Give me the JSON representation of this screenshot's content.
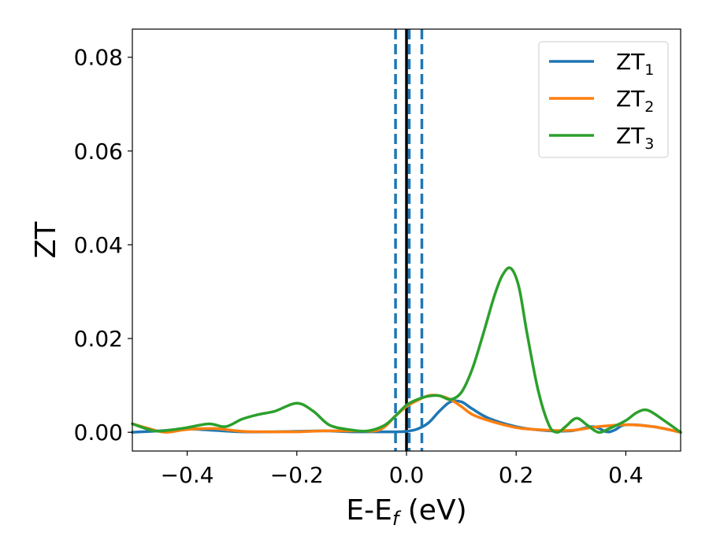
{
  "chart_data": {
    "type": "line",
    "xlabel": "E-E",
    "xlabel_sub": "f",
    "xlabel_unit": " (eV)",
    "ylabel": "ZT",
    "xlim": [
      -0.5,
      0.5
    ],
    "ylim": [
      -0.004,
      0.086
    ],
    "xticks": [
      -0.4,
      -0.2,
      0.0,
      0.2,
      0.4
    ],
    "xtick_labels": [
      "−0.4",
      "−0.2",
      "0.0",
      "0.2",
      "0.4"
    ],
    "yticks": [
      0.0,
      0.02,
      0.04,
      0.06,
      0.08
    ],
    "ytick_labels": [
      "0.00",
      "0.02",
      "0.04",
      "0.06",
      "0.08"
    ],
    "legend_position": "top-right",
    "colors": {
      "zt1": "#1f77b4",
      "zt2": "#ff7f0e",
      "zt3": "#2ca02c"
    },
    "vlines": [
      {
        "x": -0.02,
        "style": "dashed",
        "color": "#1f77b4"
      },
      {
        "x": 0.005,
        "style": "dashed",
        "color": "#1f77b4"
      },
      {
        "x": 0.028,
        "style": "dashed",
        "color": "#1f77b4"
      },
      {
        "x": 0.0,
        "style": "solid",
        "color": "#000000"
      }
    ],
    "series": [
      {
        "name": "ZT",
        "sub": "1",
        "color": "#1f77b4",
        "x": [
          -0.5,
          -0.45,
          -0.4,
          -0.35,
          -0.3,
          -0.25,
          -0.2,
          -0.15,
          -0.1,
          -0.05,
          -0.02,
          0.0,
          0.02,
          0.04,
          0.06,
          0.08,
          0.1,
          0.12,
          0.15,
          0.2,
          0.25,
          0.3,
          0.34,
          0.365,
          0.38,
          0.4,
          0.45,
          0.5
        ],
        "y": [
          0.0,
          0.0003,
          0.0007,
          0.0004,
          0.0001,
          0.0001,
          0.0002,
          0.0003,
          0.0001,
          0.0001,
          0.0001,
          0.0002,
          0.0007,
          0.002,
          0.0045,
          0.0065,
          0.0065,
          0.005,
          0.003,
          0.0012,
          0.0004,
          0.0003,
          0.0012,
          0.0001,
          0.0005,
          0.0016,
          0.0012,
          0.0
        ]
      },
      {
        "name": "ZT",
        "sub": "2",
        "color": "#ff7f0e",
        "x": [
          -0.5,
          -0.47,
          -0.44,
          -0.4,
          -0.35,
          -0.3,
          -0.25,
          -0.2,
          -0.15,
          -0.1,
          -0.05,
          -0.02,
          0.0,
          0.02,
          0.04,
          0.06,
          0.08,
          0.1,
          0.12,
          0.15,
          0.2,
          0.25,
          0.3,
          0.35,
          0.4,
          0.45,
          0.5
        ],
        "y": [
          0.0018,
          0.0008,
          0.0,
          0.0006,
          0.0008,
          0.0002,
          0.0001,
          0.0001,
          0.0003,
          0.0003,
          0.0005,
          0.0035,
          0.0055,
          0.0068,
          0.0078,
          0.0078,
          0.007,
          0.0055,
          0.0038,
          0.0025,
          0.001,
          0.0005,
          0.0004,
          0.0012,
          0.0016,
          0.0012,
          0.0
        ]
      },
      {
        "name": "ZT",
        "sub": "3",
        "color": "#2ca02c",
        "x": [
          -0.5,
          -0.46,
          -0.43,
          -0.4,
          -0.36,
          -0.33,
          -0.3,
          -0.27,
          -0.24,
          -0.2,
          -0.17,
          -0.14,
          -0.1,
          -0.07,
          -0.04,
          -0.02,
          0.0,
          0.02,
          0.04,
          0.06,
          0.08,
          0.1,
          0.12,
          0.14,
          0.16,
          0.175,
          0.19,
          0.205,
          0.22,
          0.24,
          0.26,
          0.275,
          0.29,
          0.31,
          0.33,
          0.35,
          0.37,
          0.4,
          0.42,
          0.44,
          0.47,
          0.5
        ],
        "y": [
          0.0018,
          0.0003,
          0.0005,
          0.001,
          0.0018,
          0.0012,
          0.0028,
          0.0038,
          0.0045,
          0.0062,
          0.0045,
          0.0015,
          0.0005,
          0.0003,
          0.0015,
          0.0035,
          0.0058,
          0.007,
          0.0077,
          0.0078,
          0.007,
          0.0085,
          0.0135,
          0.021,
          0.029,
          0.0335,
          0.035,
          0.031,
          0.021,
          0.009,
          0.0015,
          0.0,
          0.0012,
          0.003,
          0.0015,
          0.0,
          0.0008,
          0.0025,
          0.0042,
          0.0047,
          0.0025,
          0.0
        ]
      }
    ]
  }
}
